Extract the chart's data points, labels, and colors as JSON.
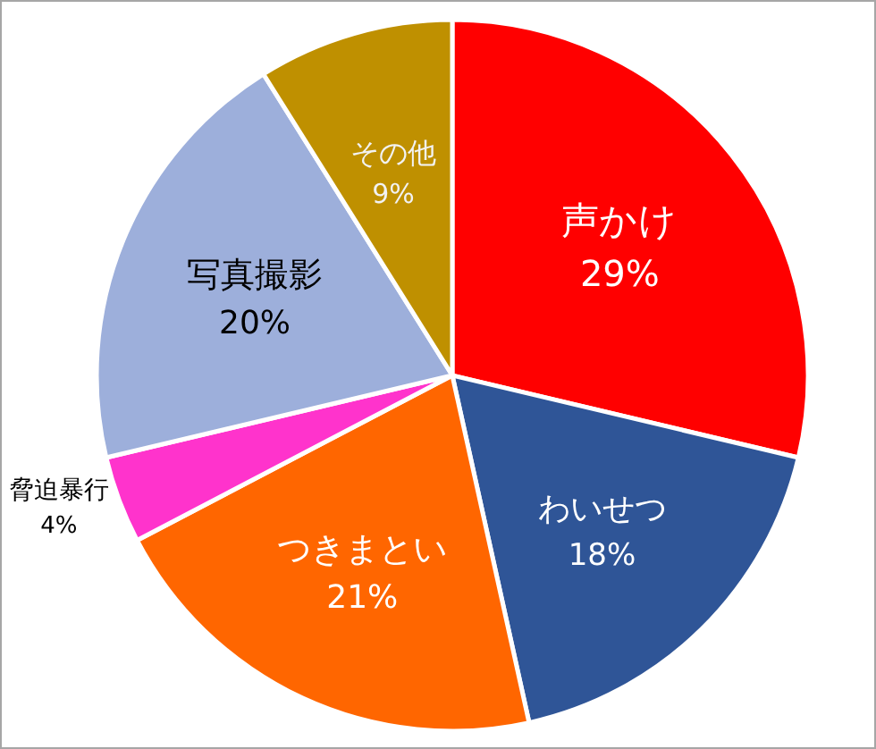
{
  "chart_data": {
    "type": "pie",
    "categories": [
      "声かけ",
      "わいせつ",
      "つきまとい",
      "脅迫暴行",
      "写真撮影",
      "その他"
    ],
    "values": [
      29,
      18,
      21,
      4,
      20,
      9
    ],
    "colors": [
      "#ff0000",
      "#2f5597",
      "#ff6600",
      "#ff33cc",
      "#9dafdb",
      "#bf9000"
    ],
    "value_labels": [
      "29%",
      "18%",
      "21%",
      "4%",
      "20%",
      "9%"
    ]
  }
}
